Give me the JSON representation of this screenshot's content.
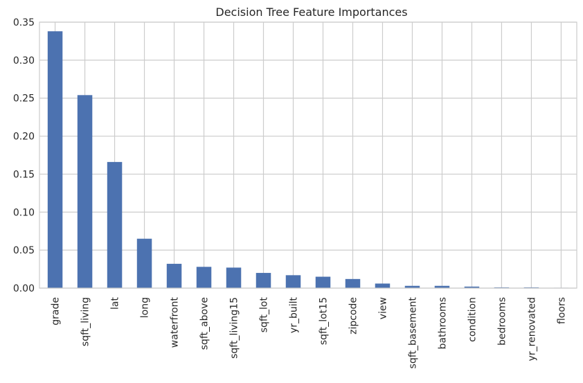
{
  "chart_data": {
    "type": "bar",
    "title": "Decision Tree Feature Importances",
    "xlabel": "",
    "ylabel": "",
    "categories": [
      "grade",
      "sqft_living",
      "lat",
      "long",
      "waterfront",
      "sqft_above",
      "sqft_living15",
      "sqft_lot",
      "yr_built",
      "sqft_lot15",
      "zipcode",
      "view",
      "sqft_basement",
      "bathrooms",
      "condition",
      "bedrooms",
      "yr_renovated",
      "floors"
    ],
    "values": [
      0.338,
      0.254,
      0.166,
      0.065,
      0.032,
      0.028,
      0.027,
      0.02,
      0.017,
      0.015,
      0.012,
      0.006,
      0.003,
      0.003,
      0.002,
      0.001,
      0.001,
      0.0005
    ],
    "ylim": [
      0,
      0.35
    ],
    "yticks": [
      0.0,
      0.05,
      0.1,
      0.15,
      0.2,
      0.25,
      0.3,
      0.35
    ],
    "ytick_labels": [
      "0.00",
      "0.05",
      "0.10",
      "0.15",
      "0.20",
      "0.25",
      "0.30",
      "0.35"
    ],
    "grid": true,
    "legend": "none",
    "bar_color": "#4c72b0"
  }
}
